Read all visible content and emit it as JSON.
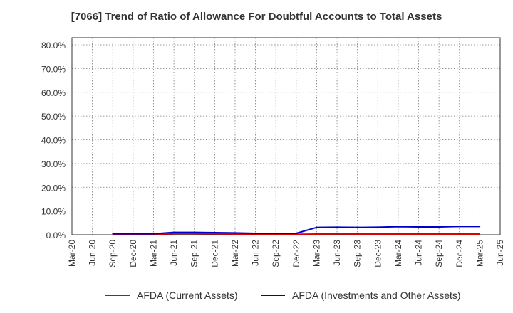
{
  "title": "[7066]  Trend of Ratio of Allowance For Doubtful Accounts to Total Assets",
  "chart_data": {
    "type": "line",
    "title": "[7066]  Trend of Ratio of Allowance For Doubtful Accounts to Total Assets",
    "xlabel": "",
    "ylabel": "",
    "ylim": [
      0,
      80
    ],
    "y_ticks": [
      0,
      10,
      20,
      30,
      40,
      50,
      60,
      70,
      80
    ],
    "y_tick_labels": [
      "0.0%",
      "10.0%",
      "20.0%",
      "30.0%",
      "40.0%",
      "50.0%",
      "60.0%",
      "70.0%",
      "80.0%"
    ],
    "x_tick_labels": [
      "Mar-20",
      "Jun-20",
      "Sep-20",
      "Dec-20",
      "Mar-21",
      "Jun-21",
      "Sep-21",
      "Dec-21",
      "Mar-22",
      "Jun-22",
      "Sep-22",
      "Dec-22",
      "Mar-23",
      "Jun-23",
      "Sep-23",
      "Dec-23",
      "Mar-24",
      "Jun-24",
      "Sep-24",
      "Dec-24",
      "Mar-25",
      "Jun-25"
    ],
    "grid": true,
    "legend_position": "bottom",
    "series": [
      {
        "name": "AFDA (Current Assets)",
        "color": "#dd0000",
        "x": [
          "Sep-20",
          "Dec-20",
          "Mar-21",
          "Jun-21",
          "Sep-21",
          "Dec-21",
          "Mar-22",
          "Jun-22",
          "Sep-22",
          "Dec-22",
          "Mar-23",
          "Jun-23",
          "Sep-23",
          "Dec-23",
          "Mar-24",
          "Jun-24",
          "Sep-24",
          "Dec-24",
          "Mar-25"
        ],
        "values": [
          0.1,
          0.1,
          0.1,
          0.5,
          0.5,
          0.4,
          0.3,
          0.2,
          0.2,
          0.2,
          0.3,
          0.4,
          0.3,
          0.3,
          0.3,
          0.3,
          0.3,
          0.3,
          0.3
        ]
      },
      {
        "name": "AFDA (Investments and Other Assets)",
        "color": "#0000cc",
        "x": [
          "Sep-20",
          "Dec-20",
          "Mar-21",
          "Jun-21",
          "Sep-21",
          "Dec-21",
          "Mar-22",
          "Jun-22",
          "Sep-22",
          "Dec-22",
          "Mar-23",
          "Jun-23",
          "Sep-23",
          "Dec-23",
          "Mar-24",
          "Jun-24",
          "Sep-24",
          "Dec-24",
          "Mar-25"
        ],
        "values": [
          0.4,
          0.4,
          0.4,
          1.0,
          1.0,
          0.9,
          0.8,
          0.6,
          0.6,
          0.6,
          3.1,
          3.2,
          3.1,
          3.2,
          3.4,
          3.3,
          3.3,
          3.5,
          3.5
        ]
      }
    ]
  }
}
